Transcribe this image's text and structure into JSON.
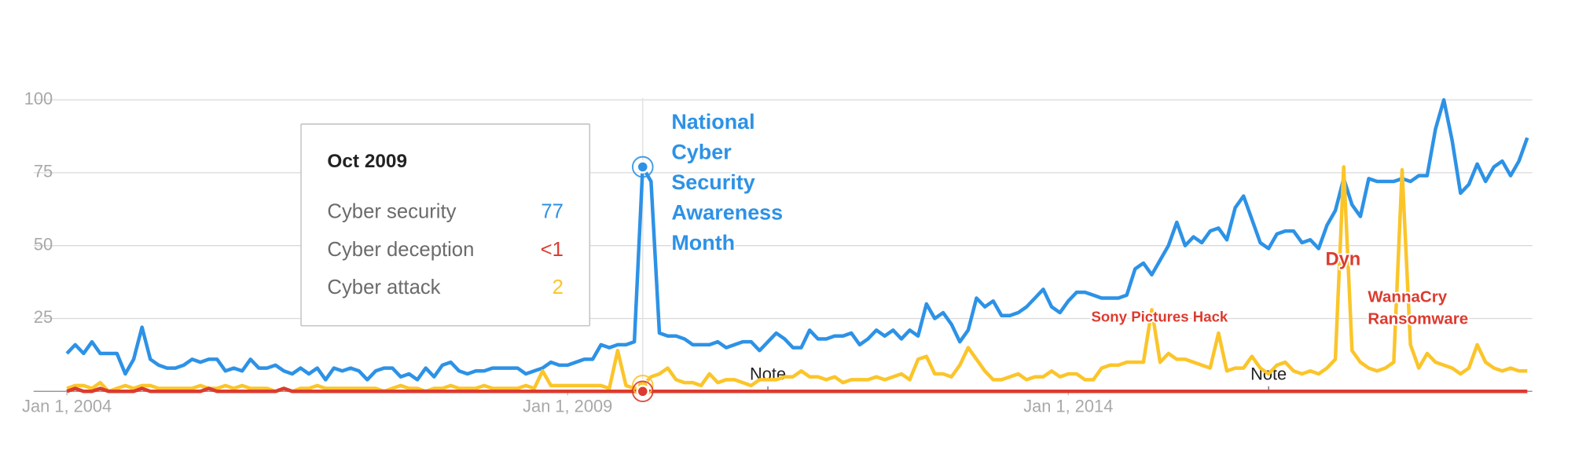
{
  "chart_data": {
    "type": "line",
    "x": [
      "2004-01",
      "2004-02",
      "2004-03",
      "2004-04",
      "2004-05",
      "2004-06",
      "2004-07",
      "2004-08",
      "2004-09",
      "2004-10",
      "2004-11",
      "2004-12",
      "2005-01",
      "2005-02",
      "2005-03",
      "2005-04",
      "2005-05",
      "2005-06",
      "2005-07",
      "2005-08",
      "2005-09",
      "2005-10",
      "2005-11",
      "2005-12",
      "2006-01",
      "2006-02",
      "2006-03",
      "2006-04",
      "2006-05",
      "2006-06",
      "2006-07",
      "2006-08",
      "2006-09",
      "2006-10",
      "2006-11",
      "2006-12",
      "2007-01",
      "2007-02",
      "2007-03",
      "2007-04",
      "2007-05",
      "2007-06",
      "2007-07",
      "2007-08",
      "2007-09",
      "2007-10",
      "2007-11",
      "2007-12",
      "2008-01",
      "2008-02",
      "2008-03",
      "2008-04",
      "2008-05",
      "2008-06",
      "2008-07",
      "2008-08",
      "2008-09",
      "2008-10",
      "2008-11",
      "2008-12",
      "2009-01",
      "2009-02",
      "2009-03",
      "2009-04",
      "2009-05",
      "2009-06",
      "2009-07",
      "2009-08",
      "2009-09",
      "2009-10",
      "2009-11",
      "2009-12",
      "2010-01",
      "2010-02",
      "2010-03",
      "2010-04",
      "2010-05",
      "2010-06",
      "2010-07",
      "2010-08",
      "2010-09",
      "2010-10",
      "2010-11",
      "2010-12",
      "2011-01",
      "2011-02",
      "2011-03",
      "2011-04",
      "2011-05",
      "2011-06",
      "2011-07",
      "2011-08",
      "2011-09",
      "2011-10",
      "2011-11",
      "2011-12",
      "2012-01",
      "2012-02",
      "2012-03",
      "2012-04",
      "2012-05",
      "2012-06",
      "2012-07",
      "2012-08",
      "2012-09",
      "2012-10",
      "2012-11",
      "2012-12",
      "2013-01",
      "2013-02",
      "2013-03",
      "2013-04",
      "2013-05",
      "2013-06",
      "2013-07",
      "2013-08",
      "2013-09",
      "2013-10",
      "2013-11",
      "2013-12",
      "2014-01",
      "2014-02",
      "2014-03",
      "2014-04",
      "2014-05",
      "2014-06",
      "2014-07",
      "2014-08",
      "2014-09",
      "2014-10",
      "2014-11",
      "2014-12",
      "2015-01",
      "2015-02",
      "2015-03",
      "2015-04",
      "2015-05",
      "2015-06",
      "2015-07",
      "2015-08",
      "2015-09",
      "2015-10",
      "2015-11",
      "2015-12",
      "2016-01",
      "2016-02",
      "2016-03",
      "2016-04",
      "2016-05",
      "2016-06",
      "2016-07",
      "2016-08",
      "2016-09",
      "2016-10",
      "2016-11",
      "2016-12",
      "2017-01",
      "2017-02",
      "2017-03",
      "2017-04",
      "2017-05",
      "2017-06",
      "2017-07",
      "2017-08",
      "2017-09",
      "2017-10",
      "2017-11",
      "2017-12",
      "2018-01",
      "2018-02",
      "2018-03",
      "2018-04",
      "2018-05",
      "2018-06",
      "2018-07",
      "2018-08"
    ],
    "series": [
      {
        "name": "Cyber security",
        "color": "#2d92e6",
        "values": [
          13,
          16,
          13,
          17,
          13,
          13,
          13,
          6,
          11,
          22,
          11,
          9,
          8,
          8,
          9,
          11,
          10,
          11,
          11,
          7,
          8,
          7,
          11,
          8,
          8,
          9,
          7,
          6,
          8,
          6,
          8,
          4,
          8,
          7,
          8,
          7,
          4,
          7,
          8,
          8,
          5,
          6,
          4,
          8,
          5,
          9,
          10,
          7,
          6,
          7,
          7,
          8,
          8,
          8,
          8,
          6,
          7,
          8,
          10,
          9,
          9,
          10,
          11,
          11,
          16,
          15,
          16,
          16,
          17,
          77,
          72,
          20,
          19,
          19,
          18,
          16,
          16,
          16,
          17,
          15,
          16,
          17,
          17,
          14,
          17,
          20,
          18,
          15,
          15,
          21,
          18,
          18,
          19,
          19,
          20,
          16,
          18,
          21,
          19,
          21,
          18,
          21,
          19,
          30,
          25,
          27,
          23,
          17,
          21,
          32,
          29,
          31,
          26,
          26,
          27,
          29,
          32,
          35,
          29,
          27,
          31,
          34,
          34,
          33,
          32,
          32,
          32,
          33,
          42,
          44,
          40,
          45,
          50,
          58,
          50,
          53,
          51,
          55,
          56,
          52,
          63,
          67,
          59,
          51,
          49,
          54,
          55,
          55,
          51,
          52,
          49,
          57,
          62,
          73,
          64,
          60,
          73,
          72,
          72,
          72,
          73,
          72,
          74,
          74,
          90,
          100,
          86,
          68,
          71,
          78,
          72,
          77,
          79,
          74,
          79,
          87
        ]
      },
      {
        "name": "Cyber attack",
        "color": "#fbc52a",
        "values": [
          1,
          2,
          2,
          1,
          3,
          0,
          1,
          2,
          1,
          2,
          2,
          1,
          1,
          1,
          1,
          1,
          2,
          1,
          1,
          2,
          1,
          2,
          1,
          1,
          1,
          0,
          1,
          0,
          1,
          1,
          2,
          1,
          1,
          1,
          1,
          1,
          1,
          1,
          0,
          1,
          2,
          1,
          1,
          0,
          1,
          1,
          2,
          1,
          1,
          1,
          2,
          1,
          1,
          1,
          1,
          2,
          1,
          7,
          2,
          2,
          2,
          2,
          2,
          2,
          2,
          1,
          14,
          2,
          1,
          2,
          5,
          6,
          8,
          4,
          3,
          3,
          2,
          6,
          3,
          4,
          4,
          3,
          2,
          4,
          4,
          4,
          5,
          5,
          7,
          5,
          5,
          4,
          5,
          3,
          4,
          4,
          4,
          5,
          4,
          5,
          6,
          4,
          11,
          12,
          6,
          6,
          5,
          9,
          15,
          11,
          7,
          4,
          4,
          5,
          6,
          4,
          5,
          5,
          7,
          5,
          6,
          6,
          4,
          4,
          8,
          9,
          9,
          10,
          10,
          10,
          28,
          10,
          13,
          11,
          11,
          10,
          9,
          8,
          20,
          7,
          8,
          8,
          12,
          8,
          6,
          9,
          10,
          7,
          6,
          7,
          6,
          8,
          11,
          77,
          14,
          10,
          8,
          7,
          8,
          10,
          76,
          16,
          8,
          13,
          10,
          9,
          8,
          6,
          8,
          16,
          10,
          8,
          7,
          8,
          7,
          7
        ]
      },
      {
        "name": "Cyber deception",
        "color": "#dc3b2f",
        "values": [
          0,
          1,
          0,
          0,
          1,
          0,
          0,
          0,
          0,
          1,
          0,
          0,
          0,
          0,
          0,
          0,
          0,
          1,
          0,
          0,
          0,
          0,
          0,
          0,
          0,
          0,
          1,
          0,
          0,
          0,
          0,
          0,
          0,
          0,
          0,
          0,
          0,
          0,
          0,
          0,
          0,
          0,
          0,
          0,
          0,
          0,
          0,
          0,
          0,
          0,
          0,
          0,
          0,
          0,
          0,
          0,
          0,
          0,
          0,
          0,
          0,
          0,
          0,
          0,
          0,
          0,
          0,
          0,
          0,
          0,
          0,
          0,
          0,
          0,
          0,
          0,
          0,
          0,
          0,
          0,
          0,
          0,
          0,
          0,
          0,
          0,
          0,
          0,
          0,
          0,
          0,
          0,
          0,
          0,
          0,
          0,
          0,
          0,
          0,
          0,
          0,
          0,
          0,
          0,
          0,
          0,
          0,
          0,
          0,
          0,
          0,
          0,
          0,
          0,
          0,
          0,
          0,
          0,
          0,
          0,
          0,
          0,
          0,
          0,
          0,
          0,
          0,
          0,
          0,
          0,
          0,
          0,
          0,
          0,
          0,
          0,
          0,
          0,
          0,
          0,
          0,
          0,
          0,
          0,
          0,
          0,
          0,
          0,
          0,
          0,
          0,
          0,
          0,
          0,
          0,
          0,
          0,
          0,
          0,
          0,
          0,
          0,
          0,
          0,
          0,
          0,
          0,
          0,
          0,
          0,
          0,
          0,
          0,
          0,
          0,
          0
        ]
      }
    ],
    "xlim": [
      "2004-01",
      "2018-08"
    ],
    "xticks": [
      {
        "value": "2004-01",
        "label": "Jan 1, 2004"
      },
      {
        "value": "2009-01",
        "label": "Jan 1, 2009"
      },
      {
        "value": "2014-01",
        "label": "Jan 1, 2014"
      }
    ],
    "ylim": [
      0,
      100
    ],
    "yticks": [
      25,
      50,
      75,
      100
    ],
    "grid": true,
    "tooltip": {
      "title": "Oct 2009",
      "x": "2009-10",
      "values": [
        77,
        2,
        0
      ],
      "value_labels": [
        "77",
        "2",
        "<1"
      ]
    },
    "annotations": [
      {
        "lines": [
          "National",
          "Cyber",
          "Security",
          "Awareness",
          "Month"
        ],
        "color": "#2d92e6"
      },
      {
        "lines": [
          "Sony Pictures Hack"
        ],
        "color": "#dc3b2f"
      },
      {
        "lines": [
          "Dyn"
        ],
        "color": "#dc3b2f"
      },
      {
        "lines": [
          "WannaCry",
          "Ransomware"
        ],
        "color": "#dc3b2f"
      }
    ],
    "notes": [
      {
        "text": "Note",
        "x": "2011-01"
      },
      {
        "text": "Note",
        "x": "2016-01"
      }
    ]
  }
}
